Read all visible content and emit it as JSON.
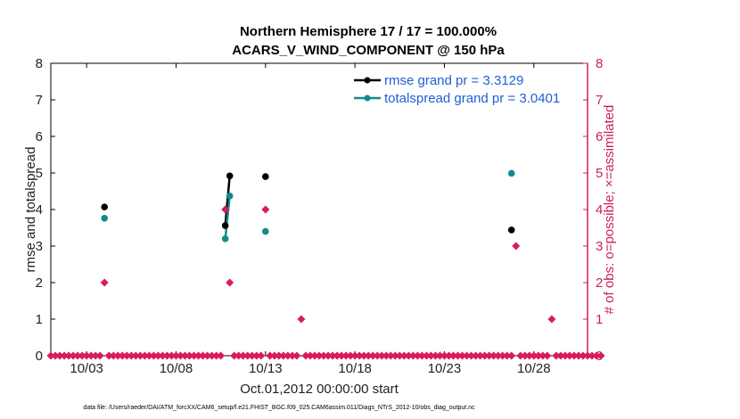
{
  "chart_data": {
    "type": "scatter",
    "title": "Northern Hemisphere 17 / 17 = 100.000%",
    "subtitle": "ACARS_V_WIND_COMPONENT @ 150 hPa",
    "xlabel": "Oct.01,2012 00:00:00 start",
    "ylabel": "rmse and totalspread",
    "ylabel_right": "# of obs: o=possible; ×=assimilated",
    "footnote": "data file: /Users/raeder/DAI/ATM_forcXX/CAM6_setup/f.e21.FHIST_BGC.f09_025.CAM6assim.011/Diags_NTrS_2012-10/obs_diag_output.nc",
    "x_start": "2012-10-01",
    "xlim": [
      "2012-10-01",
      "2012-10-31"
    ],
    "x_ticks": [
      "10/03",
      "10/08",
      "10/13",
      "10/18",
      "10/23",
      "10/28"
    ],
    "ylim": [
      0,
      8
    ],
    "y_ticks": [
      "0",
      "1",
      "2",
      "3",
      "4",
      "5",
      "6",
      "7",
      "8"
    ],
    "ylim_right": [
      0,
      8
    ],
    "y_ticks_right": [
      "0",
      "1",
      "2",
      "3",
      "4",
      "5",
      "6",
      "7",
      "8"
    ],
    "grid": false,
    "legend_position": "top-right",
    "colors": {
      "rmse": "#000000",
      "totalspread": "#138a8a",
      "obs": "#d81b60",
      "right_axis": "#cc1f5a",
      "legend_text": "#1f5fd6"
    },
    "series": [
      {
        "name": "rmse grand pr = 3.3129",
        "marker": "circle",
        "points": [
          {
            "x": "2012-10-04 00:00",
            "y": 4.07
          },
          {
            "x": "2012-10-10 18:00",
            "y": 3.56
          },
          {
            "x": "2012-10-11 00:00",
            "y": 4.92
          },
          {
            "x": "2012-10-13 00:00",
            "y": 4.9
          },
          {
            "x": "2012-10-26 18:00",
            "y": 3.44
          }
        ],
        "connected_segments": [
          [
            1,
            2
          ]
        ]
      },
      {
        "name": "totalspread grand pr = 3.0401",
        "marker": "circle",
        "points": [
          {
            "x": "2012-10-04 00:00",
            "y": 3.76
          },
          {
            "x": "2012-10-10 18:00",
            "y": 3.2
          },
          {
            "x": "2012-10-11 00:00",
            "y": 4.37
          },
          {
            "x": "2012-10-13 00:00",
            "y": 3.4
          },
          {
            "x": "2012-10-26 18:00",
            "y": 4.99
          }
        ],
        "connected_segments": [
          [
            1,
            2
          ]
        ]
      },
      {
        "marker": "diamond",
        "axis": "right",
        "spacing_hours": 6,
        "values": [
          0,
          0,
          0,
          0,
          0,
          0,
          0,
          0,
          0,
          0,
          0,
          0,
          2,
          0,
          0,
          0,
          0,
          0,
          0,
          0,
          0,
          0,
          0,
          0,
          0,
          0,
          0,
          0,
          0,
          0,
          0,
          0,
          0,
          0,
          0,
          0,
          0,
          0,
          0,
          4,
          2,
          0,
          0,
          0,
          0,
          0,
          0,
          0,
          4,
          0,
          0,
          0,
          0,
          0,
          0,
          0,
          1,
          0,
          0,
          0,
          0,
          0,
          0,
          0,
          0,
          0,
          0,
          0,
          0,
          0,
          0,
          0,
          0,
          0,
          0,
          0,
          0,
          0,
          0,
          0,
          0,
          0,
          0,
          0,
          0,
          0,
          0,
          0,
          0,
          0,
          0,
          0,
          0,
          0,
          0,
          0,
          0,
          0,
          0,
          0,
          0,
          0,
          0,
          0,
          3,
          0,
          0,
          0,
          0,
          0,
          0,
          0,
          1,
          0,
          0,
          0,
          0,
          0,
          0,
          0,
          0,
          0,
          0,
          0
        ]
      }
    ]
  }
}
